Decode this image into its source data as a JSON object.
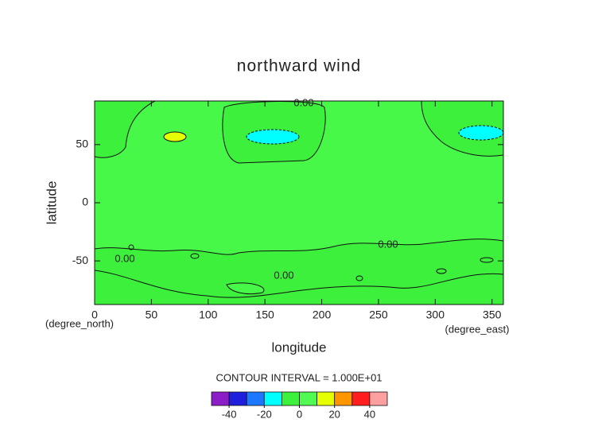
{
  "chart_data": {
    "type": "contour",
    "title": "northward wind",
    "xlabel": "longitude",
    "ylabel": "latitude",
    "x_unit": "(degree_east)",
    "y_unit": "(degree_north)",
    "xlim": [
      0,
      360
    ],
    "ylim": [
      -87.5,
      87.5
    ],
    "xticks": [
      0,
      50,
      100,
      150,
      200,
      250,
      300,
      350
    ],
    "yticks": [
      -50,
      0,
      50
    ],
    "contour_labels": [
      "0.00",
      "0.00",
      "0.00",
      "0.00"
    ],
    "contour_interval_text": "CONTOUR INTERVAL = 1.000E+01",
    "colorbar": {
      "bins": [
        -50,
        -40,
        -30,
        -20,
        -10,
        0,
        10,
        20,
        30,
        40,
        50
      ],
      "colors": [
        "#8c1ec8",
        "#1e1edc",
        "#1e78ff",
        "#00ffff",
        "#3cf03c",
        "#50fa50",
        "#e6ff00",
        "#ff9600",
        "#ff1e1e",
        "#ffa0a0"
      ],
      "ticks": [
        -40,
        -20,
        0,
        20,
        40
      ]
    }
  }
}
